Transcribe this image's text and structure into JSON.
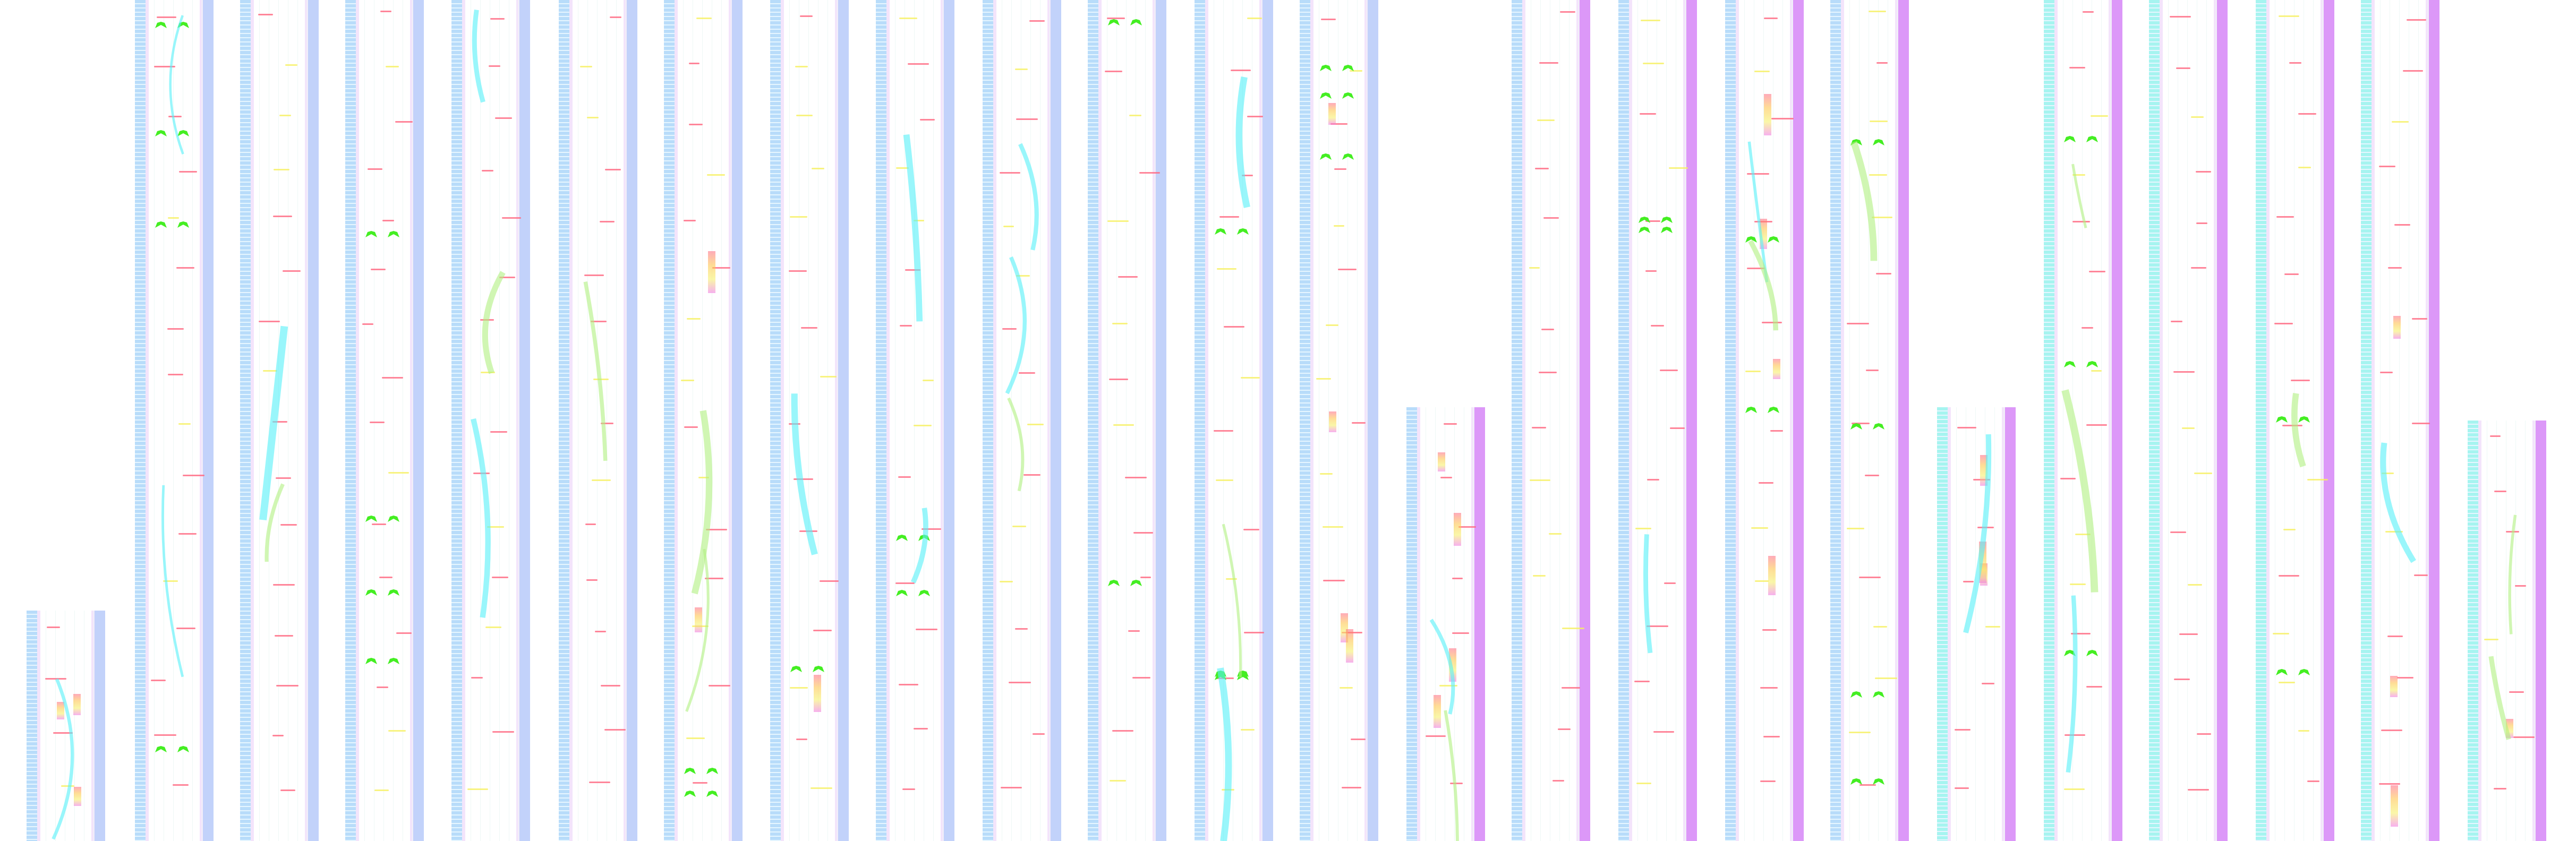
{
  "palette": {
    "background": "#ffffff",
    "left_strip_blue": "#b8dcfa",
    "left_strip_cyan": "#a6f4f0",
    "right_strip_blue": "#c2d2fa",
    "right_strip_purple": "#dc98f8",
    "inner_edge": "#f3e4fb",
    "mark_red": "#ff6680",
    "mark_yellow": "#f6f060",
    "mark_green": "#44ee22",
    "mark_cyan": "#55f0f8",
    "mark_magenta": "#f070e0",
    "mark_orange": "#ffc040",
    "link_green": "#b0f080"
  },
  "columns": [
    {
      "theme": "blue"
    },
    {
      "theme": "blue"
    },
    {
      "theme": "blue"
    },
    {
      "theme": "blue"
    },
    {
      "theme": "blue"
    },
    {
      "theme": "blue"
    },
    {
      "theme": "blue"
    },
    {
      "theme": "blue"
    },
    {
      "theme": "blue"
    },
    {
      "theme": "blue"
    },
    {
      "theme": "blue"
    },
    {
      "theme": "blue"
    },
    {
      "theme": "blue"
    },
    {
      "theme": "purple"
    },
    {
      "theme": "purple"
    },
    {
      "theme": "purple"
    },
    {
      "theme": "purple"
    },
    {
      "theme": "purple"
    },
    {
      "theme": "cyan"
    },
    {
      "theme": "cyan"
    },
    {
      "theme": "cyan"
    },
    {
      "theme": "cyan"
    },
    {
      "theme": "cyan"
    },
    {
      "theme": "cyan"
    }
  ]
}
